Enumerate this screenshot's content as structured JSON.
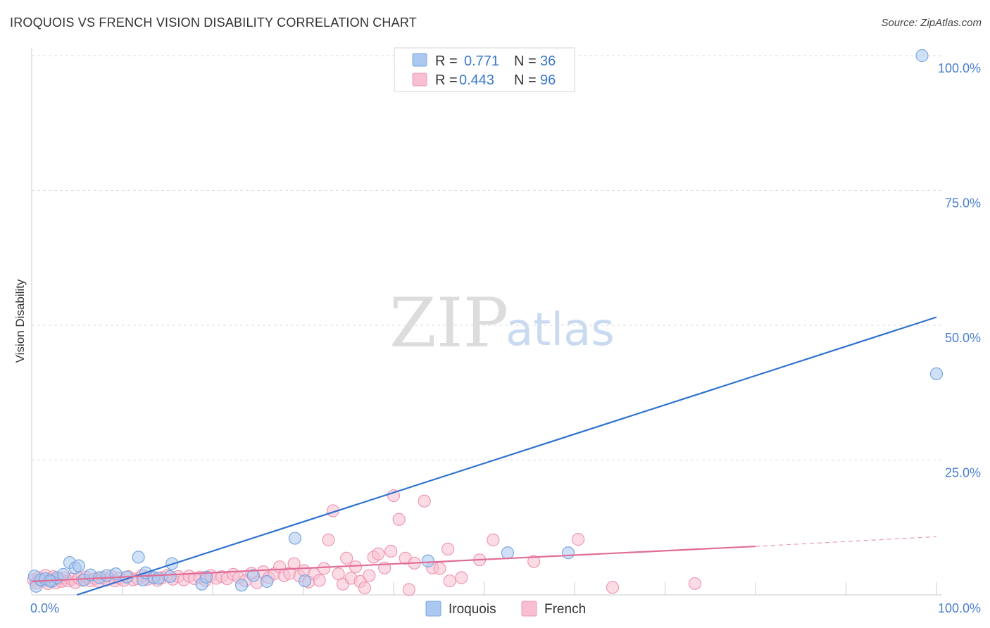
{
  "header": {
    "title": "IROQUOIS VS FRENCH VISION DISABILITY CORRELATION CHART",
    "source": "Source: ZipAtlas.com"
  },
  "watermark": {
    "zip": "ZIP",
    "atlas": "atlas"
  },
  "colors": {
    "iroquois_fill": "#aac8f0",
    "iroquois_stroke": "#7aa7e0",
    "iroquois_line": "#2f72d0",
    "french_fill": "#f7bfd0",
    "french_stroke": "#ef98b4",
    "french_line": "#e06d96",
    "tick_text": "#4a7fd0",
    "grid": "#dddddd"
  },
  "legend": {
    "rows": [
      {
        "r_label": "R =",
        "r_value": "0.771",
        "n_label": "N =",
        "n_value": "36"
      },
      {
        "r_label": "R =",
        "r_value": "0.443",
        "n_label": "N =",
        "n_value": "96"
      }
    ]
  },
  "chart_data": {
    "type": "scatter",
    "title": "IROQUOIS VS FRENCH VISION DISABILITY CORRELATION CHART",
    "xlabel": "",
    "ylabel": "Vision Disability",
    "xlim": [
      0,
      100
    ],
    "ylim": [
      0,
      100
    ],
    "x_tick_labels": [
      "0.0%",
      "100.0%"
    ],
    "y_ticks": [
      25,
      50,
      75,
      100
    ],
    "y_tick_labels": [
      "25.0%",
      "50.0%",
      "75.0%",
      "100.0%"
    ],
    "grid": true,
    "legend_position": "top-center",
    "series": [
      {
        "name": "Iroquois",
        "r": 0.771,
        "n": 36,
        "trend": {
          "x0": 5,
          "y0": 0,
          "x1": 100,
          "y1": 51.5
        },
        "points": [
          [
            0.3,
            3.5
          ],
          [
            0.5,
            1.6
          ],
          [
            1.0,
            2.8
          ],
          [
            1.5,
            3.0
          ],
          [
            2.2,
            2.5
          ],
          [
            2.8,
            3.2
          ],
          [
            3.5,
            3.8
          ],
          [
            4.2,
            6.0
          ],
          [
            4.8,
            5.0
          ],
          [
            5.2,
            5.4
          ],
          [
            5.8,
            2.8
          ],
          [
            6.5,
            3.7
          ],
          [
            7.5,
            3.2
          ],
          [
            8.3,
            3.6
          ],
          [
            9.3,
            3.9
          ],
          [
            10.5,
            3.3
          ],
          [
            11.8,
            7.0
          ],
          [
            12.3,
            2.8
          ],
          [
            12.6,
            4.1
          ],
          [
            13.5,
            3.2
          ],
          [
            14.0,
            3.1
          ],
          [
            15.3,
            3.4
          ],
          [
            15.5,
            5.8
          ],
          [
            18.8,
            2.0
          ],
          [
            19.3,
            3.3
          ],
          [
            23.2,
            1.8
          ],
          [
            24.5,
            3.6
          ],
          [
            26.0,
            2.5
          ],
          [
            29.1,
            10.5
          ],
          [
            30.2,
            2.6
          ],
          [
            43.8,
            6.3
          ],
          [
            52.6,
            7.8
          ],
          [
            59.3,
            7.8
          ],
          [
            98.4,
            100.0
          ],
          [
            100.0,
            41.0
          ],
          [
            2.0,
            2.6
          ]
        ]
      },
      {
        "name": "French",
        "r": 0.443,
        "n": 96,
        "trend": {
          "x0": 0,
          "y0": 2.5,
          "x1": 80,
          "y1": 9.0,
          "dash_to_x": 100,
          "dash_to_y": 10.8
        },
        "points": [
          [
            0.2,
            2.8
          ],
          [
            0.5,
            2.2
          ],
          [
            0.8,
            3.2
          ],
          [
            1.2,
            2.6
          ],
          [
            1.5,
            3.6
          ],
          [
            1.8,
            2.1
          ],
          [
            2.1,
            2.9
          ],
          [
            2.4,
            3.4
          ],
          [
            2.7,
            2.3
          ],
          [
            3.0,
            3.0
          ],
          [
            3.3,
            2.5
          ],
          [
            3.6,
            3.2
          ],
          [
            4.0,
            2.6
          ],
          [
            4.4,
            2.9
          ],
          [
            4.8,
            2.3
          ],
          [
            5.2,
            3.1
          ],
          [
            5.6,
            2.7
          ],
          [
            6.0,
            3.3
          ],
          [
            6.5,
            2.6
          ],
          [
            7.0,
            3.0
          ],
          [
            7.4,
            2.5
          ],
          [
            7.9,
            3.2
          ],
          [
            8.3,
            2.8
          ],
          [
            8.8,
            3.5
          ],
          [
            9.2,
            2.6
          ],
          [
            9.7,
            3.1
          ],
          [
            10.2,
            2.7
          ],
          [
            10.7,
            3.4
          ],
          [
            11.2,
            2.8
          ],
          [
            11.7,
            3.0
          ],
          [
            12.2,
            3.6
          ],
          [
            12.8,
            2.9
          ],
          [
            13.3,
            3.3
          ],
          [
            13.9,
            2.7
          ],
          [
            14.4,
            3.2
          ],
          [
            15.0,
            3.6
          ],
          [
            15.6,
            2.9
          ],
          [
            16.2,
            3.4
          ],
          [
            16.8,
            2.8
          ],
          [
            17.4,
            3.5
          ],
          [
            18.0,
            3.0
          ],
          [
            18.6,
            3.3
          ],
          [
            19.2,
            2.7
          ],
          [
            19.8,
            3.6
          ],
          [
            20.4,
            3.1
          ],
          [
            21.0,
            3.4
          ],
          [
            21.6,
            3.0
          ],
          [
            22.3,
            3.8
          ],
          [
            22.9,
            3.2
          ],
          [
            23.6,
            2.6
          ],
          [
            24.3,
            4.0
          ],
          [
            24.9,
            2.3
          ],
          [
            25.6,
            4.3
          ],
          [
            26.2,
            3.2
          ],
          [
            26.8,
            3.9
          ],
          [
            27.4,
            5.2
          ],
          [
            27.9,
            3.6
          ],
          [
            28.5,
            4.0
          ],
          [
            29.0,
            5.8
          ],
          [
            29.6,
            3.5
          ],
          [
            30.1,
            4.5
          ],
          [
            30.6,
            2.4
          ],
          [
            31.2,
            3.9
          ],
          [
            31.8,
            2.7
          ],
          [
            32.3,
            4.9
          ],
          [
            32.8,
            10.2
          ],
          [
            33.3,
            15.6
          ],
          [
            33.9,
            3.9
          ],
          [
            34.4,
            2.0
          ],
          [
            34.8,
            6.8
          ],
          [
            35.3,
            3.1
          ],
          [
            35.8,
            5.2
          ],
          [
            36.3,
            2.5
          ],
          [
            36.8,
            1.3
          ],
          [
            37.3,
            3.6
          ],
          [
            37.8,
            7.0
          ],
          [
            38.3,
            7.6
          ],
          [
            39.0,
            5.0
          ],
          [
            39.7,
            8.1
          ],
          [
            40.0,
            18.4
          ],
          [
            40.6,
            14.0
          ],
          [
            41.3,
            6.8
          ],
          [
            41.7,
            1.0
          ],
          [
            42.3,
            5.9
          ],
          [
            43.4,
            17.4
          ],
          [
            44.3,
            5.0
          ],
          [
            45.1,
            4.9
          ],
          [
            46.2,
            2.6
          ],
          [
            46.0,
            8.5
          ],
          [
            49.5,
            6.5
          ],
          [
            51.0,
            10.2
          ],
          [
            55.5,
            6.2
          ],
          [
            60.4,
            10.3
          ],
          [
            64.2,
            1.4
          ],
          [
            73.3,
            2.1
          ],
          [
            47.5,
            3.2
          ]
        ]
      }
    ]
  },
  "bottom_legend": {
    "items": [
      {
        "label": "Iroquois"
      },
      {
        "label": "French"
      }
    ]
  }
}
